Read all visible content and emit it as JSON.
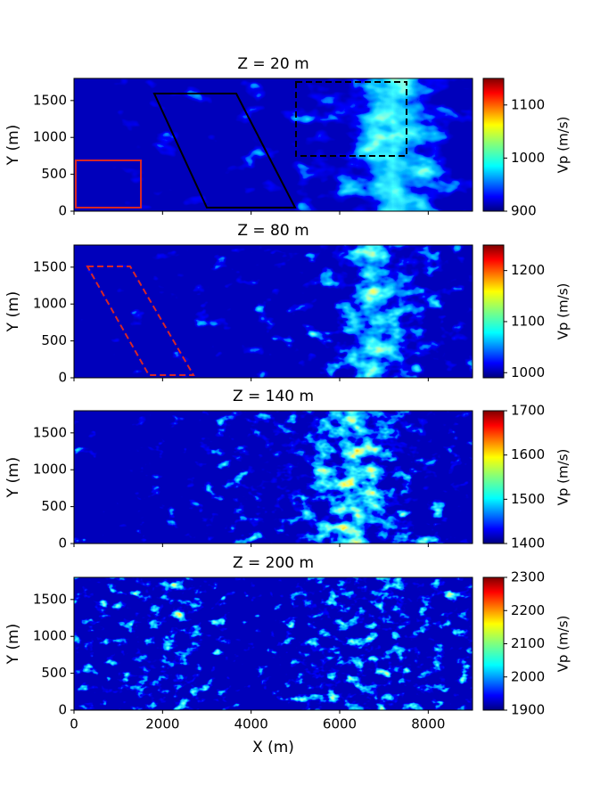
{
  "chart_data": [
    {
      "type": "heatmap",
      "title": "Z = 20 m",
      "ylabel": "Y (m)",
      "colorbar_label": "Vp (m/s)",
      "colormap": "jet",
      "xlim": [
        0,
        9000
      ],
      "ylim": [
        0,
        1800
      ],
      "yticks": [
        0,
        500,
        1000,
        1500
      ],
      "clim": [
        900,
        1150
      ],
      "cticks": [
        900,
        1000,
        1100
      ]
    },
    {
      "type": "heatmap",
      "title": "Z = 80 m",
      "ylabel": "Y (m)",
      "colorbar_label": "Vp (m/s)",
      "colormap": "jet",
      "xlim": [
        0,
        9000
      ],
      "ylim": [
        0,
        1800
      ],
      "yticks": [
        0,
        500,
        1000,
        1500
      ],
      "clim": [
        990,
        1250
      ],
      "cticks": [
        1000,
        1100,
        1200
      ]
    },
    {
      "type": "heatmap",
      "title": "Z = 140 m",
      "ylabel": "Y (m)",
      "colorbar_label": "Vp (m/s)",
      "colormap": "jet",
      "xlim": [
        0,
        9000
      ],
      "ylim": [
        0,
        1800
      ],
      "yticks": [
        0,
        500,
        1000,
        1500
      ],
      "clim": [
        1400,
        1700
      ],
      "cticks": [
        1400,
        1500,
        1600,
        1700
      ]
    },
    {
      "type": "heatmap",
      "title": "Z = 200 m",
      "ylabel": "Y (m)",
      "xlabel": "X (m)",
      "colorbar_label": "Vp (m/s)",
      "colormap": "jet",
      "xlim": [
        0,
        9000
      ],
      "ylim": [
        0,
        1800
      ],
      "xticks": [
        0,
        2000,
        4000,
        6000,
        8000
      ],
      "yticks": [
        0,
        500,
        1000,
        1500
      ],
      "clim": [
        1900,
        2300
      ],
      "cticks": [
        1900,
        2000,
        2100,
        2200,
        2300
      ]
    }
  ]
}
